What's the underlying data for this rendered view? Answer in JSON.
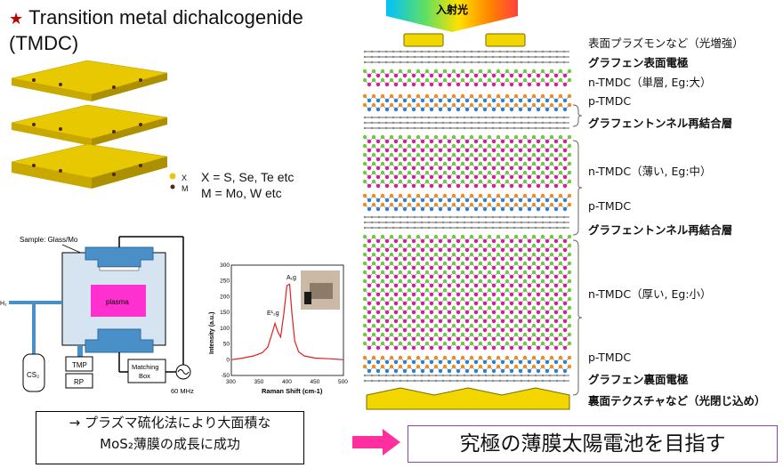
{
  "header": {
    "title_line1": "Transition metal dichalcogenide",
    "title_line2": "(TMDC)"
  },
  "legend": {
    "x_small": "X",
    "m_small": "M",
    "x_text": "X = S, Se, Te etc",
    "m_text": "M = Mo, W etc"
  },
  "apparatus": {
    "sample": "Sample: Glass/Mo",
    "plasma": "plasma",
    "h2": "H₂",
    "cs2": "CS₂",
    "tmp": "TMP",
    "rp": "RP",
    "matching1": "Matching",
    "matching2": "Box",
    "freq": "60 MHz"
  },
  "raman_chart": {
    "ylabel": "Intensity (a.u.)",
    "xlabel": "Raman Shift (cm-1)",
    "peak1": "E¹₂g",
    "peak2": "A₁g"
  },
  "chart_data": {
    "type": "line",
    "xlabel": "Raman Shift (cm-1)",
    "ylabel": "Intensity (a.u.)",
    "xlim": [
      300,
      500
    ],
    "ylim": [
      -50,
      300
    ],
    "xticks": [
      300,
      350,
      400,
      450,
      500
    ],
    "yticks": [
      -50,
      0,
      50,
      100,
      150,
      200,
      250,
      300
    ],
    "annotations": [
      "E¹₂g",
      "A₁g"
    ],
    "series": [
      {
        "color": "#e02020",
        "x": [
          300,
          320,
          340,
          355,
          365,
          372,
          378,
          383,
          388,
          394,
          399,
          404,
          408,
          413,
          420,
          430,
          450,
          475,
          500
        ],
        "y": [
          0,
          5,
          12,
          22,
          40,
          80,
          115,
          88,
          72,
          150,
          235,
          240,
          150,
          60,
          25,
          12,
          5,
          3,
          0
        ]
      }
    ]
  },
  "solar_cell": {
    "incident_light": "入射光",
    "labels": [
      "表面プラズモンなど（光増強）",
      "グラフェン表面電極",
      "n-TMDC（単層, Eg:大）",
      "p-TMDC",
      "グラフェントンネル再結合層",
      "n-TMDC（薄い, Eg:中）",
      "p-TMDC",
      "グラフェントンネル再結合層",
      "n-TMDC（厚い, Eg:小）",
      "p-TMDC",
      "グラフェン裏面電極",
      "裏面テクスチャなど（光閉じ込め）"
    ]
  },
  "bottom": {
    "box1_line1": "→ プラズマ硫化法により大面積な",
    "box1_line2": "MoS₂薄膜の成長に成功",
    "goal": "究極の薄膜太陽電池を目指す"
  },
  "colors": {
    "star": "#c00000",
    "gold_layer": "#f2d600",
    "magenta": "#e0189c",
    "green": "#6ccb3b",
    "blue": "#2b7fd6",
    "orange": "#f08a24",
    "arrow": "#ff2fa0",
    "frame": "#8e44ad"
  }
}
